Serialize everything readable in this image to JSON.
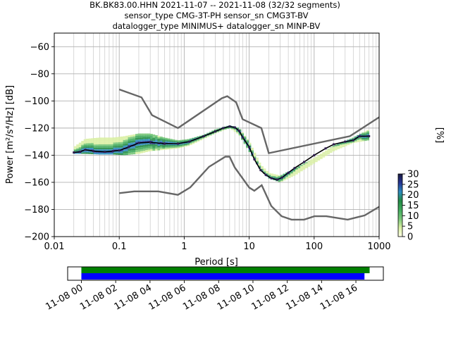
{
  "title_lines": [
    "BK.BK83.00.HHN   2021-11-07 -- 2021-11-08  (32/32 segments)",
    "sensor_type CMG-3T-PH sensor_sn CMG3T-BV",
    "datalogger_type MINIMUS+ datalogger_sn MINP-BV"
  ],
  "colorbar": {
    "label": "[%]",
    "ticks": [
      "0",
      "5",
      "10",
      "15",
      "20",
      "25",
      "30"
    ],
    "range": [
      0,
      30
    ],
    "colors": [
      "#ffffe5",
      "#d9f0a3",
      "#78c679",
      "#41ab5d",
      "#238b45",
      "#2b8cbe",
      "#253494",
      "#1a1a40"
    ]
  },
  "chart_data": [
    {
      "type": "line",
      "subtype": "probabilistic power spectral density",
      "xlabel": "Period [s]",
      "ylabel": "Power [m²/s⁴/Hz] [dB]",
      "xscale": "log",
      "xlim": [
        0.01,
        1000
      ],
      "ylim": [
        -200,
        -50
      ],
      "xticks": [
        {
          "v": 0.01,
          "label": "0.01"
        },
        {
          "v": 0.1,
          "label": "0.1"
        },
        {
          "v": 1,
          "label": "1"
        },
        {
          "v": 10,
          "label": "10"
        },
        {
          "v": 100,
          "label": "100"
        },
        {
          "v": 1000,
          "label": "1000"
        }
      ],
      "yticks": [
        {
          "v": -60,
          "label": "−60"
        },
        {
          "v": -80,
          "label": "−80"
        },
        {
          "v": -100,
          "label": "−100"
        },
        {
          "v": -120,
          "label": "−120"
        },
        {
          "v": -140,
          "label": "−140"
        },
        {
          "v": -160,
          "label": "−160"
        },
        {
          "v": -180,
          "label": "−180"
        },
        {
          "v": -200,
          "label": "−200"
        }
      ],
      "grid": true,
      "series": [
        {
          "role": "new high noise model",
          "color": "#666666",
          "x": [
            0.1,
            0.22,
            0.32,
            0.8,
            3.8,
            4.6,
            6.3,
            7.9,
            15.4,
            20,
            354.8,
            1000
          ],
          "y": [
            -91.5,
            -97.4,
            -110.5,
            -120,
            -98,
            -96.5,
            -101,
            -113.5,
            -120,
            -138.5,
            -126,
            -112
          ]
        },
        {
          "role": "new low noise model",
          "color": "#666666",
          "x": [
            0.1,
            0.17,
            0.4,
            0.8,
            1.24,
            2.4,
            4.3,
            5.0,
            6.0,
            10.0,
            12.0,
            15.6,
            21.9,
            31.6,
            45,
            70,
            101,
            154,
            328,
            600,
            1000
          ],
          "y": [
            -168,
            -166.7,
            -166.7,
            -169.2,
            -163.7,
            -148.6,
            -141.1,
            -141.1,
            -149,
            -163.8,
            -166.2,
            -162.1,
            -177.5,
            -185,
            -187.5,
            -187.5,
            -185,
            -185,
            -187.5,
            -184.4,
            -178
          ]
        },
        {
          "role": "mean",
          "color": "#000000",
          "x": [
            0.02,
            0.025,
            0.03,
            0.04,
            0.06,
            0.08,
            0.1,
            0.14,
            0.2,
            0.3,
            0.5,
            0.8,
            1.2,
            2,
            3,
            4,
            5,
            6,
            7,
            8,
            10,
            12,
            15,
            18,
            22,
            27,
            32,
            40,
            50,
            70,
            100,
            150,
            200,
            300,
            400,
            500,
            700
          ],
          "y": [
            -138,
            -137.5,
            -136,
            -137,
            -137.5,
            -137,
            -136.5,
            -134,
            -131,
            -130.5,
            -131.5,
            -131.5,
            -130,
            -126,
            -122.5,
            -120,
            -118.8,
            -119.5,
            -122,
            -127,
            -134,
            -143,
            -151,
            -154.5,
            -157,
            -158,
            -156.5,
            -153,
            -149.5,
            -145,
            -140,
            -135,
            -132,
            -130,
            -129,
            -126,
            -126
          ]
        },
        {
          "role": "high-percentile envelope",
          "color": "#c9e585",
          "x": [
            0.02,
            0.03,
            0.05,
            0.08,
            0.12,
            0.2,
            0.3,
            0.5,
            0.8,
            1.2,
            2,
            3,
            5,
            7,
            10,
            15,
            20,
            30,
            50,
            100,
            200,
            400,
            700
          ],
          "y": [
            -134,
            -128,
            -127,
            -127,
            -126,
            -124,
            -124,
            -127,
            -129,
            -128,
            -125,
            -121,
            -118,
            -120,
            -130,
            -147,
            -153,
            -155,
            -150,
            -142,
            -133,
            -127,
            -121
          ]
        },
        {
          "role": "low-percentile envelope",
          "color": "#41ab5d",
          "x": [
            0.02,
            0.03,
            0.05,
            0.08,
            0.12,
            0.2,
            0.3,
            0.5,
            0.8,
            1.2,
            2,
            3,
            5,
            7,
            10,
            15,
            20,
            30,
            50,
            100,
            200,
            400,
            700
          ],
          "y": [
            -139,
            -139,
            -139.5,
            -139.5,
            -140,
            -139,
            -137,
            -136,
            -135,
            -133,
            -128,
            -124,
            -120,
            -125,
            -137,
            -151,
            -157,
            -160,
            -155,
            -146,
            -137,
            -131,
            -129
          ]
        }
      ]
    },
    {
      "type": "bar",
      "subtype": "data coverage timeline",
      "xtick_labels": [
        "11-08 00",
        "11-08 02",
        "11-08 04",
        "11-08 06",
        "11-08 08",
        "11-08 10",
        "11-08 12",
        "11-08 14",
        "11-08 16"
      ],
      "x_hours": [
        0,
        2,
        4,
        6,
        8,
        10,
        12,
        14,
        16
      ],
      "xlim_hours": [
        -0.8,
        17.6
      ],
      "series": [
        {
          "role": "data available",
          "color": "#008000",
          "start_hour": 0,
          "end_hour": 16.8
        },
        {
          "role": "PSD segments",
          "color": "#0000ff",
          "start_hour": 0,
          "end_hour": 16.5
        }
      ]
    }
  ]
}
